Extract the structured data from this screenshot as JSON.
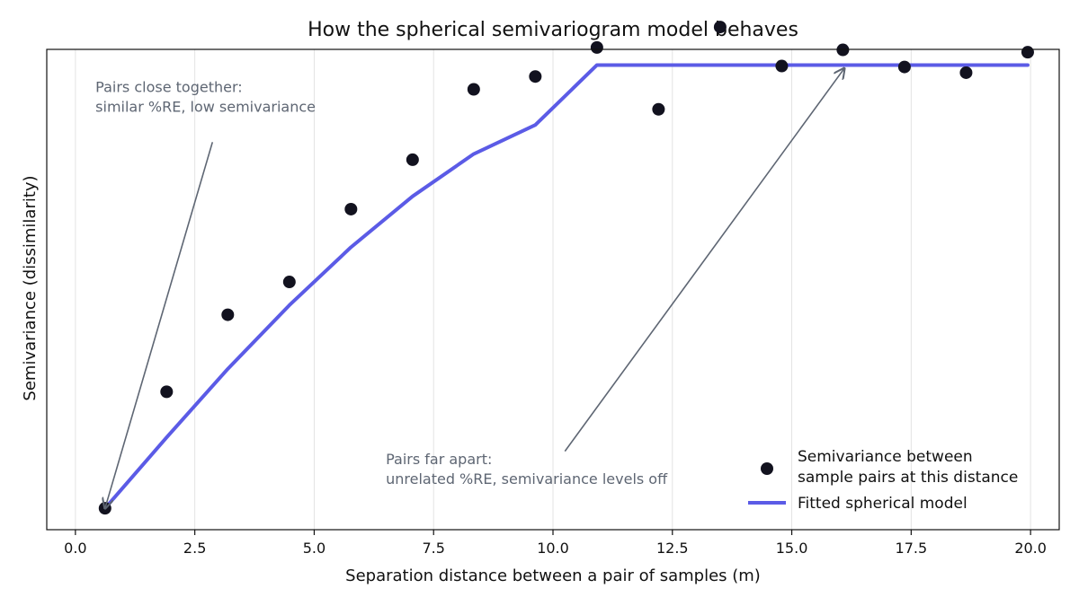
{
  "chart_data": {
    "type": "scatter",
    "title": "How the spherical semivariogram model behaves",
    "xlabel": "Separation distance between a pair of samples (m)",
    "ylabel": "Semivariance (dissimilarity)",
    "xlim": [
      -0.6,
      20.6
    ],
    "ylim": [
      -0.005,
      1.005
    ],
    "x_ticks": [
      0.0,
      2.5,
      5.0,
      7.5,
      10.0,
      12.5,
      15.0,
      17.5,
      20.0
    ],
    "x_tick_labels": [
      "0.0",
      "2.5",
      "5.0",
      "7.5",
      "10.0",
      "12.5",
      "15.0",
      "17.5",
      "20.0"
    ],
    "y_tick_labels_shown": false,
    "grid": "vertical",
    "legend_position": "bottom-right",
    "series": [
      {
        "name": "Semivariance between sample pairs at this distance",
        "name_lines": [
          "Semivariance between",
          "sample pairs at this distance"
        ],
        "kind": "scatter",
        "color": "#12121f",
        "x": [
          0.62,
          1.91,
          3.19,
          4.48,
          5.77,
          7.06,
          8.34,
          9.63,
          10.92,
          12.21,
          13.5,
          14.79,
          16.07,
          17.36,
          18.65,
          19.94
        ],
        "y": [
          0.04,
          0.285,
          0.447,
          0.516,
          0.669,
          0.773,
          0.921,
          0.948,
          1.009,
          0.879,
          1.052,
          0.97,
          1.004,
          0.968,
          0.956,
          0.999
        ]
      },
      {
        "name": "Fitted spherical model",
        "kind": "line",
        "color": "#5b5be6",
        "x": [
          0.62,
          1.91,
          3.19,
          4.48,
          5.77,
          7.06,
          8.34,
          9.63,
          10.92,
          12.21,
          13.5,
          14.79,
          16.07,
          17.36,
          18.65,
          19.94
        ],
        "y": [
          0.04,
          0.189,
          0.333,
          0.467,
          0.589,
          0.696,
          0.785,
          0.846,
          0.972,
          0.972,
          0.972,
          0.972,
          0.972,
          0.972,
          0.972,
          0.972
        ]
      }
    ],
    "annotations": [
      {
        "id": "close",
        "lines": [
          "Pairs close together:",
          "similar %RE, low semivariance"
        ],
        "text_x": 0.42,
        "text_y": 0.915,
        "arrow_from": [
          2.87,
          0.81
        ],
        "arrow_to": [
          0.62,
          0.04
        ]
      },
      {
        "id": "far",
        "lines": [
          "Pairs far apart:",
          "unrelated %RE, semivariance levels off"
        ],
        "text_x": 6.5,
        "text_y": 0.133,
        "arrow_from": [
          10.25,
          0.16
        ],
        "arrow_to": [
          16.1,
          0.965
        ]
      }
    ]
  }
}
